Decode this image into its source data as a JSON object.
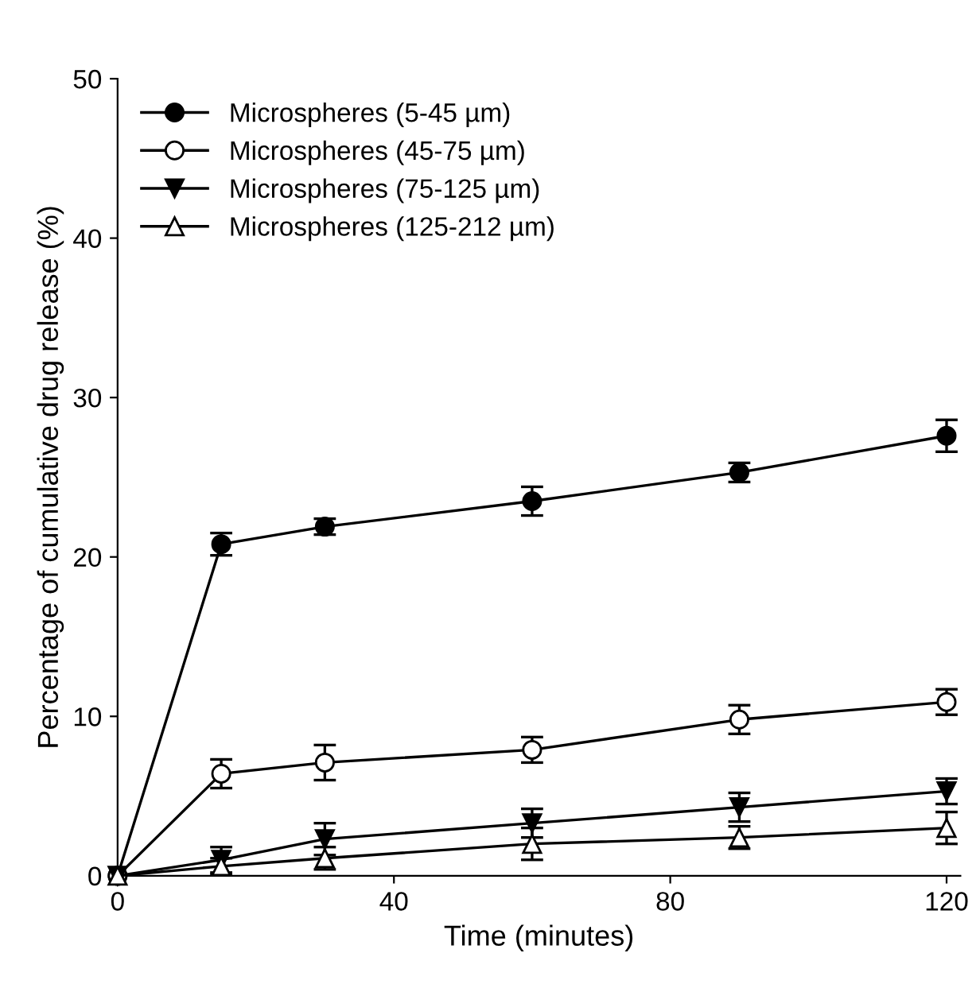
{
  "chart_data": {
    "type": "line",
    "xlabel": "Time (minutes)",
    "ylabel": "Percentage of cumulative drug release (%)",
    "x": [
      0,
      15,
      30,
      60,
      90,
      120
    ],
    "xlim": [
      0,
      122
    ],
    "xticks": [
      0,
      40,
      80,
      120
    ],
    "ylim": [
      0,
      50
    ],
    "yticks": [
      0,
      10,
      20,
      30,
      40,
      50
    ],
    "grid": false,
    "legend": "top left",
    "series": [
      {
        "name": "Microspheres (5-45 µm)",
        "color": "#000000",
        "marker": "circle",
        "values": [
          0,
          20.8,
          21.9,
          23.5,
          25.3,
          27.6
        ],
        "errors": [
          null,
          0.7,
          0.5,
          0.9,
          0.6,
          1.0
        ]
      },
      {
        "name": "Microspheres (45-75 µm)",
        "color": "#000000",
        "marker": "circle",
        "values": [
          0,
          6.4,
          7.1,
          7.9,
          9.8,
          10.9
        ],
        "errors": [
          null,
          0.9,
          1.1,
          0.8,
          0.9,
          0.8
        ]
      },
      {
        "name": "Microspheres (75-125 µm)",
        "color": "#000000",
        "marker": "triangle_down",
        "values": [
          0,
          1.0,
          2.3,
          3.3,
          4.3,
          5.3
        ],
        "errors": [
          null,
          0.8,
          1.0,
          0.9,
          0.9,
          0.8
        ]
      },
      {
        "name": "Microspheres (125-212 µm)",
        "color": "#000000",
        "marker": "triangle",
        "values": [
          0,
          0.6,
          1.1,
          2.0,
          2.4,
          3.0
        ],
        "errors": [
          null,
          0.5,
          0.7,
          1.0,
          0.7,
          1.0
        ]
      }
    ]
  }
}
